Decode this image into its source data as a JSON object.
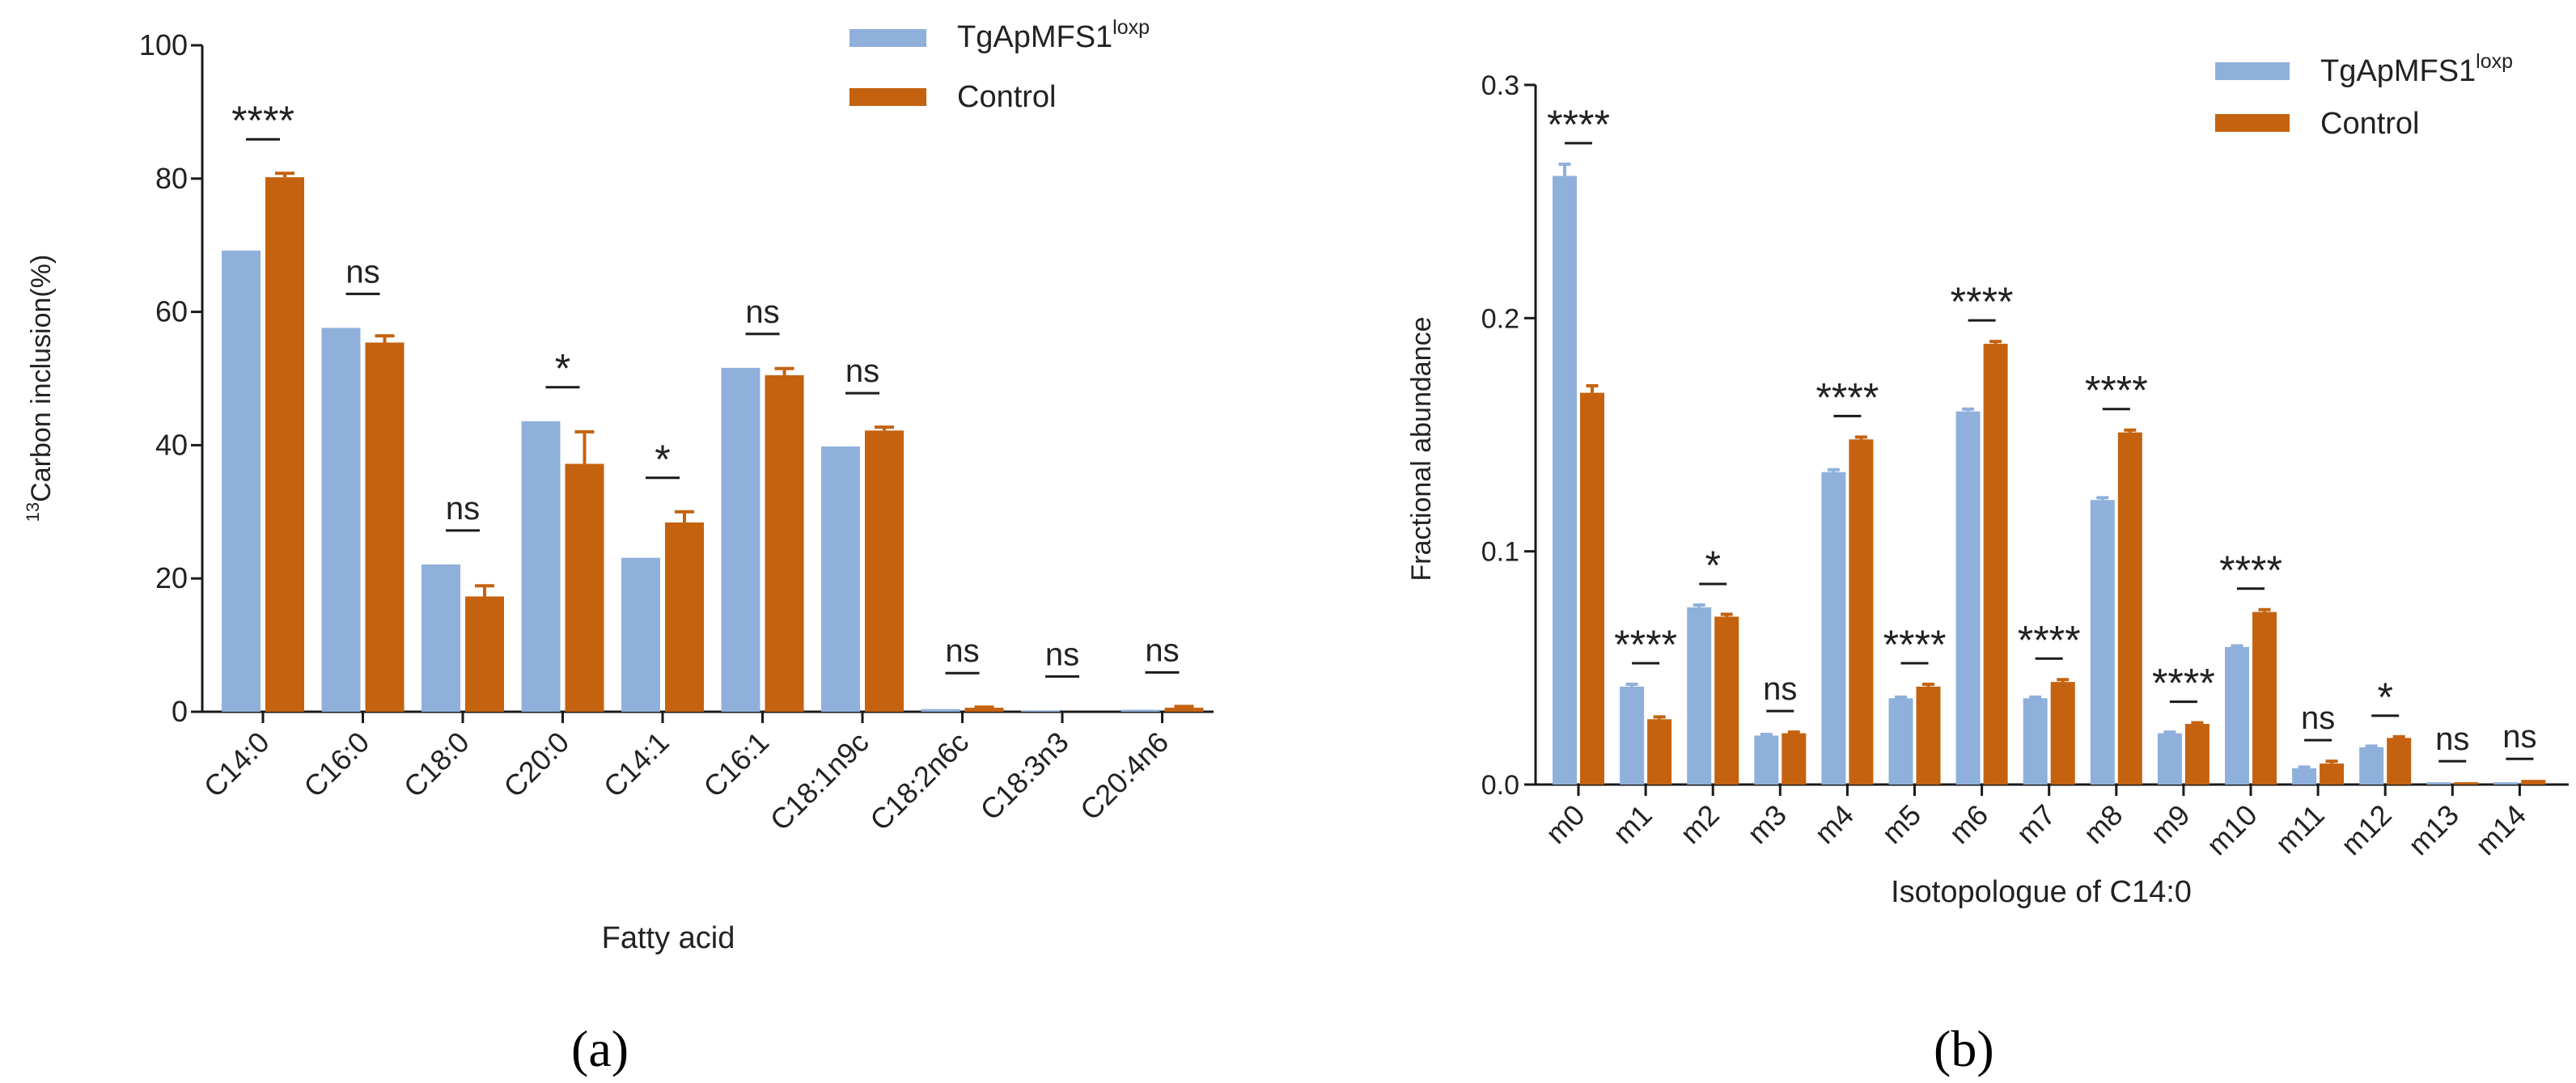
{
  "colors": {
    "series_a": "#8fb0da",
    "series_b": "#c4620f",
    "axis": "#1a1a1a",
    "text": "#222222"
  },
  "chart_data": [
    {
      "type": "bar",
      "panel_label": "(a)",
      "categories": [
        "C14:0",
        "C16:0",
        "C18:0",
        "C20:0",
        "C14:1",
        "C16:1",
        "C18:1n9c",
        "C18:2n6c",
        "C18:3n3",
        "C20:4n6"
      ],
      "series": [
        {
          "name_main": "TgApMFS1",
          "name_sup": "loxp",
          "values": [
            69.2,
            57.6,
            22.1,
            43.6,
            23.1,
            51.6,
            39.8,
            0.4,
            0.2,
            0.3
          ],
          "errors": [
            0,
            0,
            0,
            0,
            0,
            0,
            0,
            0,
            0,
            0
          ]
        },
        {
          "name_main": "Control",
          "name_sup": "",
          "values": [
            80.2,
            55.4,
            17.3,
            37.2,
            28.4,
            50.5,
            42.2,
            0.6,
            0,
            0.6
          ],
          "errors": [
            0.6,
            1.0,
            1.6,
            4.8,
            1.6,
            1.0,
            0.5,
            0.1,
            0,
            0.2
          ]
        }
      ],
      "significance": [
        "****",
        "ns",
        "ns",
        "*",
        "*",
        "ns",
        "ns",
        "ns",
        "ns",
        "ns"
      ],
      "title": "",
      "xlabel": "Fatty acid",
      "ylabel_sup": "13",
      "ylabel_main": "Carbon inclusion(%)",
      "ylim": [
        0,
        100
      ],
      "yticks": [
        "0",
        "20",
        "40",
        "60",
        "80",
        "100"
      ],
      "legend": "top-right"
    },
    {
      "type": "bar",
      "panel_label": "(b)",
      "categories": [
        "m0",
        "m1",
        "m2",
        "m3",
        "m4",
        "m5",
        "m6",
        "m7",
        "m8",
        "m9",
        "m10",
        "m11",
        "m12",
        "m13",
        "m14"
      ],
      "series": [
        {
          "name_main": "TgApMFS1",
          "name_sup": "loxp",
          "values": [
            0.261,
            0.042,
            0.076,
            0.021,
            0.134,
            0.037,
            0.16,
            0.037,
            0.122,
            0.022,
            0.059,
            0.007,
            0.016,
            0.001,
            0.001
          ],
          "errors": [
            0.005,
            0.001,
            0.001,
            0.0005,
            0.001,
            0.0005,
            0.001,
            0.0005,
            0.001,
            0.0005,
            0.0005,
            0.0005,
            0.0005,
            0,
            0
          ]
        },
        {
          "name_main": "Control",
          "name_sup": "",
          "values": [
            0.168,
            0.028,
            0.072,
            0.022,
            0.148,
            0.042,
            0.189,
            0.044,
            0.151,
            0.026,
            0.074,
            0.009,
            0.02,
            0.001,
            0.002
          ],
          "errors": [
            0.003,
            0.001,
            0.001,
            0.0005,
            0.001,
            0.001,
            0.001,
            0.001,
            0.001,
            0.0005,
            0.001,
            0.001,
            0.0005,
            0,
            0
          ]
        }
      ],
      "significance": [
        "****",
        "****",
        "*",
        "ns",
        "****",
        "****",
        "****",
        "****",
        "****",
        "****",
        "****",
        "ns",
        "*",
        "ns",
        "ns"
      ],
      "title": "",
      "xlabel": "Isotopologue of C14:0",
      "ylabel_sup": "",
      "ylabel_main": "Fractional abundance",
      "ylim": [
        0,
        0.3
      ],
      "yticks": [
        "0.0",
        "0.1",
        "0.2",
        "0.3"
      ],
      "legend": "top-right"
    }
  ]
}
